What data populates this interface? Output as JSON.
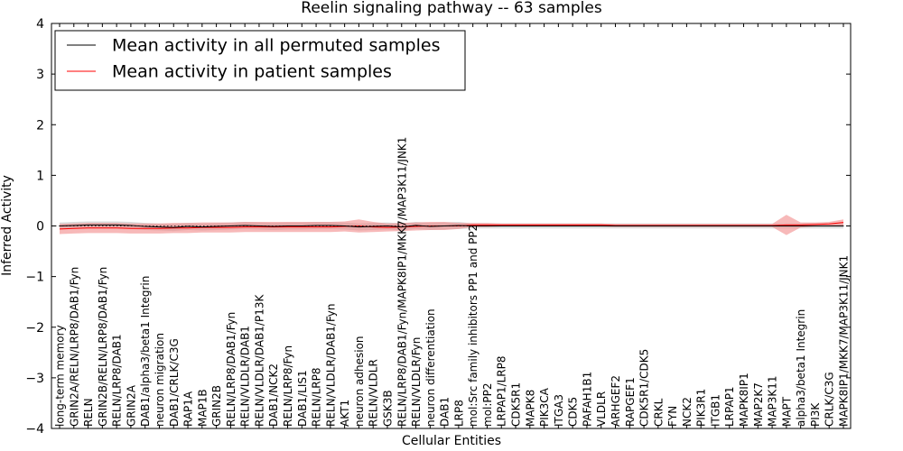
{
  "chart_data": {
    "type": "line",
    "title": "Reelin signaling pathway -- 63 samples",
    "xlabel": "Cellular Entities",
    "ylabel": "Inferred Activity",
    "ylim": [
      -4,
      4
    ],
    "yticks": [
      "−4",
      "−3",
      "−2",
      "−1",
      "0",
      "1",
      "2",
      "3",
      "4"
    ],
    "legend_position": "top-left",
    "categories": [
      "long-term memory",
      "GRIN2A/RELN/LRP8/DAB1/Fyn",
      "RELN",
      "GRIN2B/RELN/LRP8/DAB1/Fyn",
      "RELN/LRP8/DAB1",
      "GRIN2A",
      "DAB1/alpha3/beta1 Integrin",
      "neuron migration",
      "DAB1/CRLK/C3G",
      "RAP1A",
      "MAP1B",
      "GRIN2B",
      "RELN/LRP8/DAB1/Fyn",
      "RELN/VLDLR/DAB1",
      "RELN/VLDLR/DAB1/P13K",
      "DAB1/NCK2",
      "RELN/LRP8/Fyn",
      "DAB1/LIS1",
      "RELN/LRP8",
      "RELN/VLDLR/DAB1/Fyn",
      "AKT1",
      "neuron adhesion",
      "RELN/VLDLR",
      "GSK3B",
      "RELN/LRP8/DAB1/Fyn/MAPK8IP1/MKK7/MAP3K11/JNK1",
      "RELN/VLDLR/Fyn",
      "neuron differentiation",
      "DAB1",
      "LRP8",
      "mol:Src family inhibitors PP1 and PP2",
      "mol:PP2",
      "LRPAP1/LRP8",
      "CDK5R1",
      "MAPK8",
      "PIK3CA",
      "ITGA3",
      "CDK5",
      "PAFAH1B1",
      "VLDLR",
      "ARHGEF2",
      "RAPGEF1",
      "CDK5R1/CDK5",
      "CRKL",
      "FYN",
      "NCK2",
      "PIK3R1",
      "ITGB1",
      "LRPAP1",
      "MAPK8IP1",
      "MAP2K7",
      "MAP3K11",
      "MAPT",
      "alpha3/beta1 Integrin",
      "PI3K",
      "CRLK/C3G",
      "MAPK8IP1/MKK7/MAP3K11/JNK1"
    ],
    "series": [
      {
        "name": "Mean activity in all permuted samples",
        "color": "#000000",
        "values": [
          0.0,
          0.01,
          0.02,
          0.02,
          0.02,
          0.01,
          -0.01,
          -0.02,
          -0.03,
          -0.01,
          -0.02,
          -0.01,
          0.0,
          0.01,
          0.0,
          -0.01,
          0.0,
          0.0,
          0.01,
          0.01,
          0.0,
          -0.02,
          -0.01,
          0.0,
          -0.02,
          0.01,
          -0.01,
          0.0,
          0.01,
          0.0,
          0.0,
          0.0,
          0.0,
          0.0,
          0.0,
          0.0,
          0.0,
          0.0,
          0.0,
          0.0,
          0.0,
          0.0,
          0.0,
          0.0,
          0.0,
          0.0,
          0.0,
          0.0,
          0.0,
          0.0,
          0.0,
          0.0,
          0.0,
          0.0,
          0.0,
          0.0
        ],
        "band": [
          0.07,
          0.07,
          0.07,
          0.07,
          0.07,
          0.07,
          0.07,
          0.07,
          0.07,
          0.07,
          0.07,
          0.07,
          0.07,
          0.07,
          0.07,
          0.07,
          0.07,
          0.07,
          0.07,
          0.07,
          0.07,
          0.07,
          0.07,
          0.07,
          0.07,
          0.07,
          0.07,
          0.07,
          0.07,
          0.05,
          0.05,
          0.05,
          0.05,
          0.05,
          0.05,
          0.05,
          0.05,
          0.05,
          0.05,
          0.05,
          0.05,
          0.05,
          0.05,
          0.05,
          0.05,
          0.05,
          0.05,
          0.05,
          0.05,
          0.05,
          0.05,
          0.05,
          0.05,
          0.05,
          0.05,
          0.05
        ]
      },
      {
        "name": "Mean activity in patient samples",
        "color": "#ff0000",
        "values": [
          -0.06,
          -0.05,
          -0.04,
          -0.04,
          -0.04,
          -0.05,
          -0.05,
          -0.05,
          -0.04,
          -0.04,
          -0.03,
          -0.03,
          -0.03,
          -0.02,
          -0.02,
          -0.02,
          -0.02,
          -0.02,
          -0.02,
          -0.02,
          -0.01,
          0.0,
          -0.02,
          -0.03,
          -0.02,
          -0.01,
          0.0,
          0.0,
          0.0,
          0.02,
          0.02,
          0.02,
          0.02,
          0.02,
          0.02,
          0.02,
          0.02,
          0.02,
          0.02,
          0.01,
          0.01,
          0.01,
          0.01,
          0.01,
          0.01,
          0.01,
          0.01,
          0.01,
          0.01,
          0.01,
          0.01,
          0.02,
          0.02,
          0.03,
          0.04,
          0.07
        ],
        "band": [
          0.1,
          0.1,
          0.1,
          0.1,
          0.1,
          0.1,
          0.1,
          0.1,
          0.1,
          0.1,
          0.1,
          0.1,
          0.1,
          0.1,
          0.1,
          0.1,
          0.1,
          0.1,
          0.1,
          0.1,
          0.1,
          0.13,
          0.1,
          0.08,
          0.08,
          0.08,
          0.08,
          0.08,
          0.06,
          0.04,
          0.04,
          0.03,
          0.03,
          0.03,
          0.03,
          0.03,
          0.03,
          0.03,
          0.03,
          0.03,
          0.03,
          0.03,
          0.03,
          0.03,
          0.03,
          0.03,
          0.03,
          0.03,
          0.03,
          0.03,
          0.03,
          0.2,
          0.05,
          0.04,
          0.04,
          0.06
        ]
      }
    ]
  }
}
